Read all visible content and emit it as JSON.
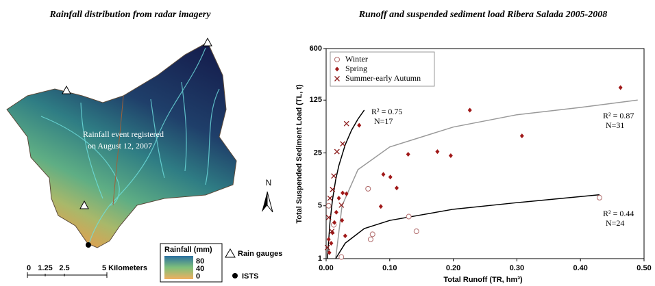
{
  "map": {
    "title": "Rainfall distribution from radar imagery",
    "annotation": [
      "Rainfall event registered",
      "on August 12, 2007"
    ],
    "north": "N",
    "legend": {
      "title": "Rainfall (mm)",
      "ticks": [
        80,
        40,
        0
      ],
      "gauges": "Rain gauges",
      "outlet": "ISTS"
    },
    "scale": [
      "0",
      "1.25",
      "2.5",
      "5 Kilometers"
    ]
  },
  "chart_data": {
    "type": "scatter",
    "title": "Runoff and suspended sediment load Ribera Salada 2005-2008",
    "xlabel": "Total Runoff (TR, hm³)",
    "ylabel": "Total Suspended Sediment Load (TL, t)",
    "xlim": [
      0,
      0.5
    ],
    "xticks": [
      {
        "value": 0,
        "label": "0.00"
      },
      {
        "value": 0.1,
        "label": "0.10"
      },
      {
        "value": 0.2,
        "label": "0.20"
      },
      {
        "value": 0.3,
        "label": "0.30"
      },
      {
        "value": 0.4,
        "label": "0.40"
      },
      {
        "value": 0.5,
        "label": "0.50"
      }
    ],
    "ylim": [
      1,
      600
    ],
    "yticks": [
      1,
      5,
      25,
      125,
      600
    ],
    "yscale": "log",
    "legend": "upper left",
    "series": [
      {
        "name": "Winter",
        "color": "#b06a6a",
        "marker": "circle",
        "x": [
          0.066,
          0.13,
          0.142,
          0.073,
          0.07,
          0.024,
          0.43,
          0.004,
          0.012
        ],
        "values": [
          8.4,
          3.6,
          2.3,
          2.1,
          1.8,
          1.05,
          6.4,
          5,
          2.8
        ]
      },
      {
        "name": "Spring",
        "color": "#a01818",
        "marker": "diamond",
        "x": [
          0.463,
          0.226,
          0.308,
          0.052,
          0.175,
          0.196,
          0.129,
          0.09,
          0.101,
          0.111,
          0.086,
          0.005,
          0.008,
          0.01,
          0.013,
          0.016,
          0.02,
          0.026,
          0.032,
          0.025,
          0.004,
          0.03
        ],
        "values": [
          183,
          92,
          42,
          58,
          26,
          23,
          24,
          13,
          12,
          8.6,
          4.9,
          1.2,
          1.6,
          2.2,
          3.0,
          4.1,
          6.3,
          7.4,
          7.2,
          3.2,
          1.8,
          2.0
        ]
      },
      {
        "name": "Summer-early Autumn",
        "color": "#8b1a1a",
        "marker": "x",
        "x": [
          0.032,
          0.026,
          0.017,
          0.012,
          0.01,
          0.024,
          0.006,
          0.004,
          0.009,
          0.002
        ],
        "values": [
          61,
          33,
          26,
          12.4,
          8.2,
          5.1,
          6.3,
          3.5,
          2.3,
          1.4
        ]
      }
    ],
    "fits": [
      {
        "color": "#000000",
        "r2": "R² = 0.75",
        "n": "N=17",
        "x": [
          0.002,
          0.006,
          0.01,
          0.015,
          0.02,
          0.03,
          0.04,
          0.05,
          0.06
        ],
        "values": [
          1,
          3,
          6,
          11,
          17,
          32,
          50,
          70,
          92
        ]
      },
      {
        "color": "#999999",
        "r2": "R² = 0.87",
        "n": "N=31",
        "x": [
          0.015,
          0.025,
          0.05,
          0.1,
          0.2,
          0.3,
          0.4,
          0.49
        ],
        "values": [
          1,
          5,
          15,
          30,
          55,
          80,
          100,
          125
        ]
      },
      {
        "color": "#000000",
        "r2": "R² = 0.44",
        "n": "N=24",
        "x": [
          0.015,
          0.03,
          0.06,
          0.1,
          0.2,
          0.3,
          0.43
        ],
        "values": [
          1,
          1.6,
          2.5,
          3.2,
          4.5,
          5.5,
          7
        ]
      }
    ]
  }
}
